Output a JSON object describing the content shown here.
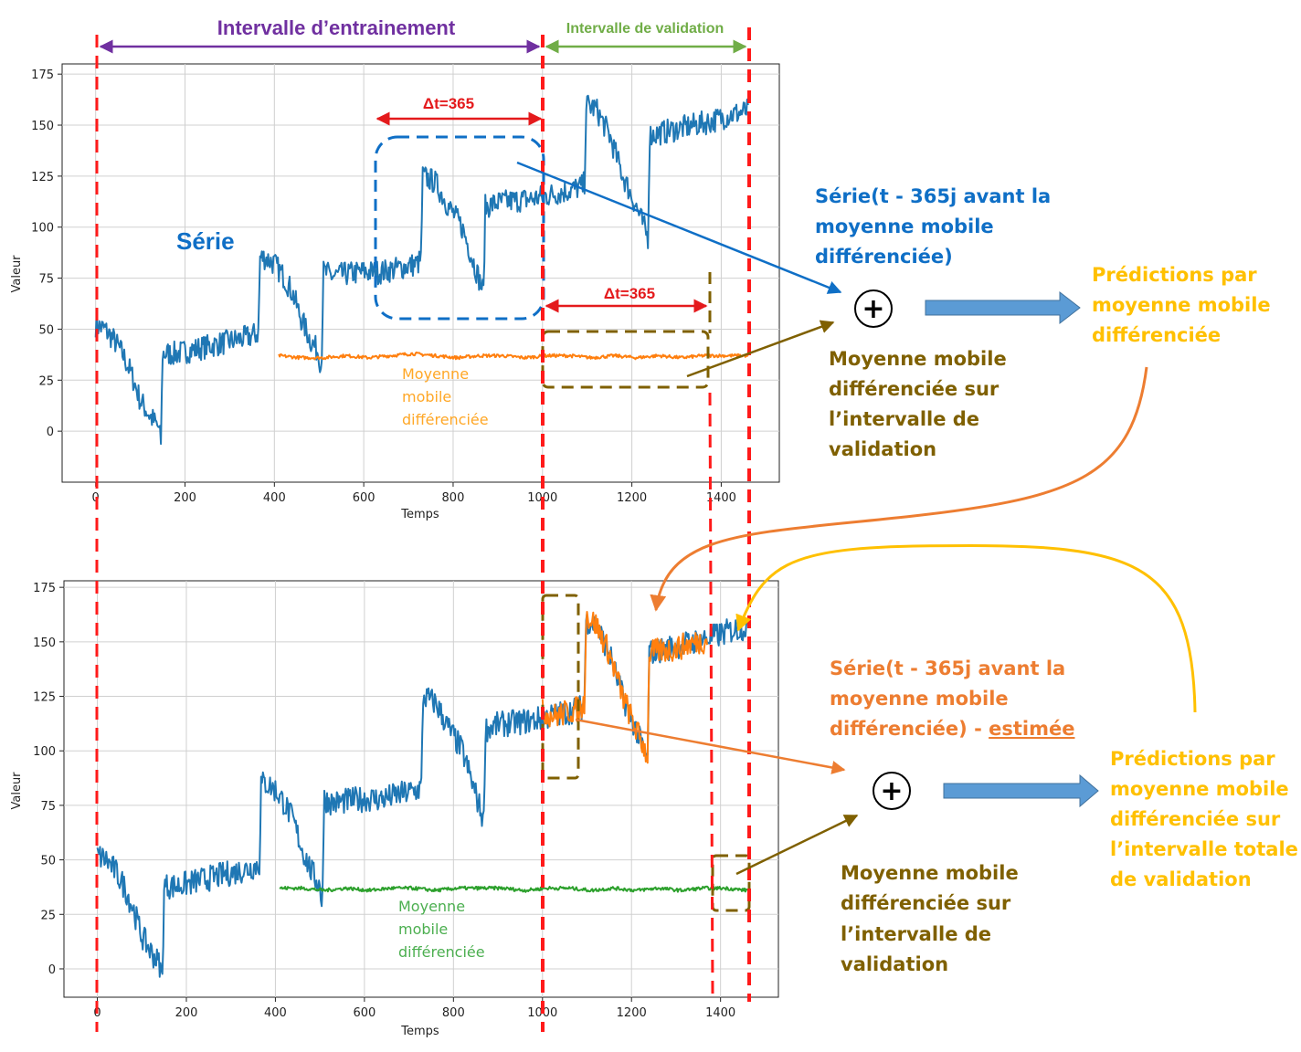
{
  "colors": {
    "series": "#1f77b4",
    "moving_avg_top": "#ff7f0e",
    "moving_avg_bottom": "#2ca02c",
    "estimate": "#ff7f0e",
    "red_marker": "#e41a1c",
    "purple": "#7030a0",
    "green_label": "#70ad47",
    "blue_label": "#0f6fc6",
    "brown": "#7f6000",
    "orange_label": "#ed7d31",
    "yellow_label": "#ffc000",
    "fat_arrow": "#5b9bd5"
  },
  "header": {
    "training_label": "Intervalle d’entrainement",
    "validation_label": "Intervalle de validation"
  },
  "chart_data": [
    {
      "type": "line",
      "xlabel": "Temps",
      "ylabel": "Valeur",
      "xlim": [
        -75,
        1530
      ],
      "ylim": [
        -25,
        180
      ],
      "xticks": [
        0,
        200,
        400,
        600,
        800,
        1000,
        1200,
        1400
      ],
      "yticks": [
        0,
        25,
        50,
        75,
        100,
        125,
        150,
        175
      ],
      "grid": true,
      "series": [
        {
          "name": "Série",
          "x": [
            0,
            20,
            40,
            60,
            80,
            100,
            120,
            140,
            146,
            150,
            180,
            220,
            260,
            300,
            340,
            364,
            368,
            380,
            400,
            420,
            440,
            460,
            480,
            500,
            505,
            510,
            530,
            560,
            600,
            640,
            680,
            720,
            728,
            732,
            760,
            790,
            820,
            850,
            868,
            872,
            900,
            940,
            980,
            1020,
            1060,
            1090,
            1094,
            1098,
            1120,
            1150,
            1180,
            1210,
            1236,
            1240,
            1260,
            1300,
            1340,
            1380,
            1420,
            1460
          ],
          "y": [
            52,
            50,
            45,
            38,
            28,
            15,
            8,
            2,
            -5,
            38,
            38,
            40,
            42,
            44,
            46,
            48,
            85,
            85,
            82,
            76,
            68,
            55,
            45,
            38,
            30,
            78,
            76,
            77,
            78,
            78,
            80,
            82,
            84,
            125,
            122,
            110,
            100,
            80,
            68,
            110,
            112,
            113,
            114,
            116,
            118,
            120,
            122,
            160,
            158,
            145,
            125,
            110,
            95,
            145,
            146,
            148,
            150,
            152,
            155,
            157
          ],
          "noise": 6
        },
        {
          "name": "Moyenne mobile différenciée",
          "x": [
            410,
            460,
            510,
            560,
            610,
            660,
            710,
            760,
            810,
            860,
            910,
            960,
            1010,
            1060,
            1110,
            1160,
            1210,
            1260,
            1310,
            1360,
            1410,
            1460
          ],
          "y": [
            37,
            36,
            36,
            37,
            36,
            37,
            38,
            37,
            36,
            37,
            37,
            36,
            37,
            37,
            36,
            37,
            36,
            37,
            36,
            37,
            37,
            37
          ],
          "noise": 0.8
        }
      ],
      "annotations": [
        {
          "text": "Δt=365",
          "from": 635,
          "to": 1000,
          "y": 155
        },
        {
          "text": "Δt=365",
          "from": 1000,
          "to": 1365,
          "y": 62
        }
      ],
      "inline_labels": {
        "series": "Série",
        "moving_avg": [
          "Moyenne",
          "mobile",
          "différenciée"
        ]
      }
    },
    {
      "type": "line",
      "xlabel": "Temps",
      "ylabel": "Valeur",
      "xlim": [
        -75,
        1530
      ],
      "ylim": [
        -13,
        178
      ],
      "xticks": [
        0,
        200,
        400,
        600,
        800,
        1000,
        1200,
        1400
      ],
      "yticks": [
        0,
        25,
        50,
        75,
        100,
        125,
        150,
        175
      ],
      "grid": true,
      "series": [
        {
          "name": "Série",
          "x": [
            0,
            20,
            40,
            60,
            80,
            100,
            120,
            140,
            146,
            150,
            180,
            220,
            260,
            300,
            340,
            364,
            368,
            380,
            400,
            420,
            440,
            460,
            480,
            500,
            505,
            510,
            530,
            560,
            600,
            640,
            680,
            720,
            728,
            732,
            760,
            790,
            820,
            850,
            868,
            872,
            900,
            940,
            980,
            1020,
            1060,
            1090,
            1094,
            1098,
            1120,
            1150,
            1180,
            1210,
            1236,
            1240,
            1260,
            1300,
            1340,
            1380,
            1420,
            1460
          ],
          "y": [
            52,
            50,
            45,
            38,
            28,
            15,
            8,
            2,
            -5,
            38,
            38,
            40,
            42,
            44,
            46,
            48,
            85,
            85,
            82,
            76,
            68,
            55,
            45,
            38,
            30,
            78,
            76,
            77,
            78,
            78,
            80,
            82,
            84,
            125,
            122,
            110,
            100,
            80,
            68,
            110,
            112,
            113,
            114,
            116,
            118,
            120,
            122,
            160,
            158,
            145,
            125,
            110,
            95,
            145,
            146,
            148,
            150,
            152,
            155,
            157
          ],
          "noise": 6
        },
        {
          "name": "Série estimée",
          "x": [
            1000,
            1030,
            1060,
            1090,
            1094,
            1098,
            1120,
            1150,
            1180,
            1210,
            1236,
            1240,
            1270,
            1300,
            1330,
            1370
          ],
          "y": [
            118,
            116,
            118,
            120,
            122,
            162,
            158,
            145,
            125,
            110,
            98,
            145,
            146,
            147,
            149,
            151
          ],
          "noise": 6
        },
        {
          "name": "Moyenne mobile différenciée",
          "x": [
            410,
            460,
            510,
            560,
            610,
            660,
            710,
            760,
            810,
            860,
            910,
            960,
            1010,
            1060,
            1110,
            1160,
            1210,
            1260,
            1310,
            1360,
            1410,
            1460
          ],
          "y": [
            37,
            37,
            36,
            37,
            36,
            37,
            37,
            36,
            37,
            37,
            37,
            36,
            37,
            37,
            36,
            37,
            36,
            37,
            36,
            37,
            37,
            36
          ],
          "noise": 0.8
        }
      ],
      "inline_labels": {
        "moving_avg": [
          "Moyenne",
          "mobile",
          "différenciée"
        ]
      }
    }
  ],
  "annotations": {
    "top_blue": [
      "Série(t - 365j avant la",
      "moyenne mobile",
      "différenciée)"
    ],
    "top_brown": [
      "Moyenne mobile",
      "différenciée sur",
      "l’intervalle de",
      "validation"
    ],
    "top_result": [
      "Prédictions par",
      "moyenne mobile",
      "différenciée"
    ],
    "bottom_orange": [
      "Série(t - 365j avant la",
      "moyenne mobile"
    ],
    "bottom_orange_last": "différenciée) - ",
    "bottom_orange_underlined": "estimée",
    "bottom_brown": [
      "Moyenne mobile",
      "différenciée sur",
      "l’intervalle de",
      "validation"
    ],
    "bottom_result": [
      "Prédictions par",
      "moyenne mobile",
      "différenciée sur",
      "l’intervalle totale",
      "de validation"
    ],
    "plus_symbol": "+"
  }
}
